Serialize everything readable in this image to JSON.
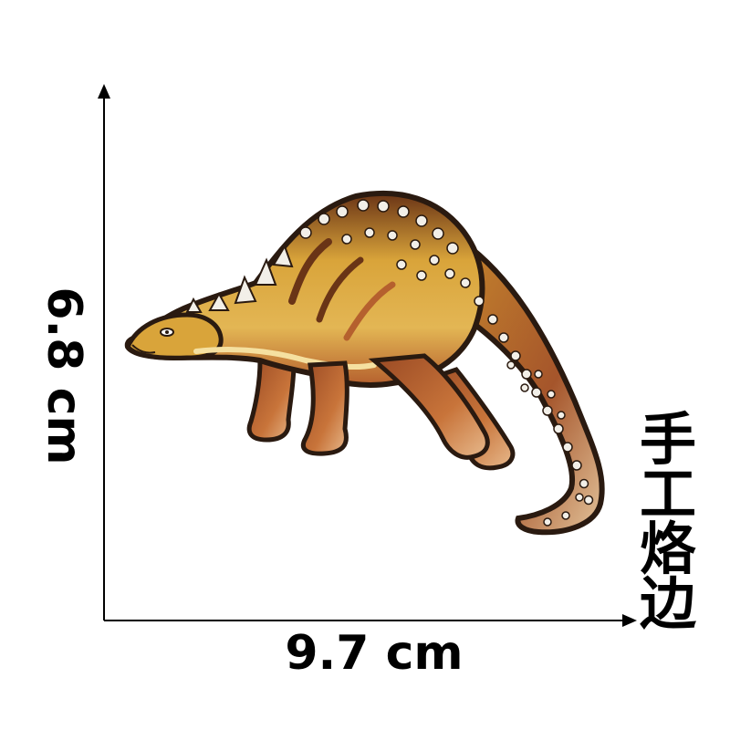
{
  "dimensions": {
    "height_label": "6.8 cm",
    "width_label": "9.7 cm"
  },
  "edge_label": "手工烙边",
  "product": {
    "subject": "dinosaur-embroidered-patch",
    "colors": {
      "body": "#c98a2c",
      "belly": "#e3b654",
      "legs": "#b5602e",
      "outline": "#2a1a10",
      "spots": "#f2efe8"
    }
  }
}
